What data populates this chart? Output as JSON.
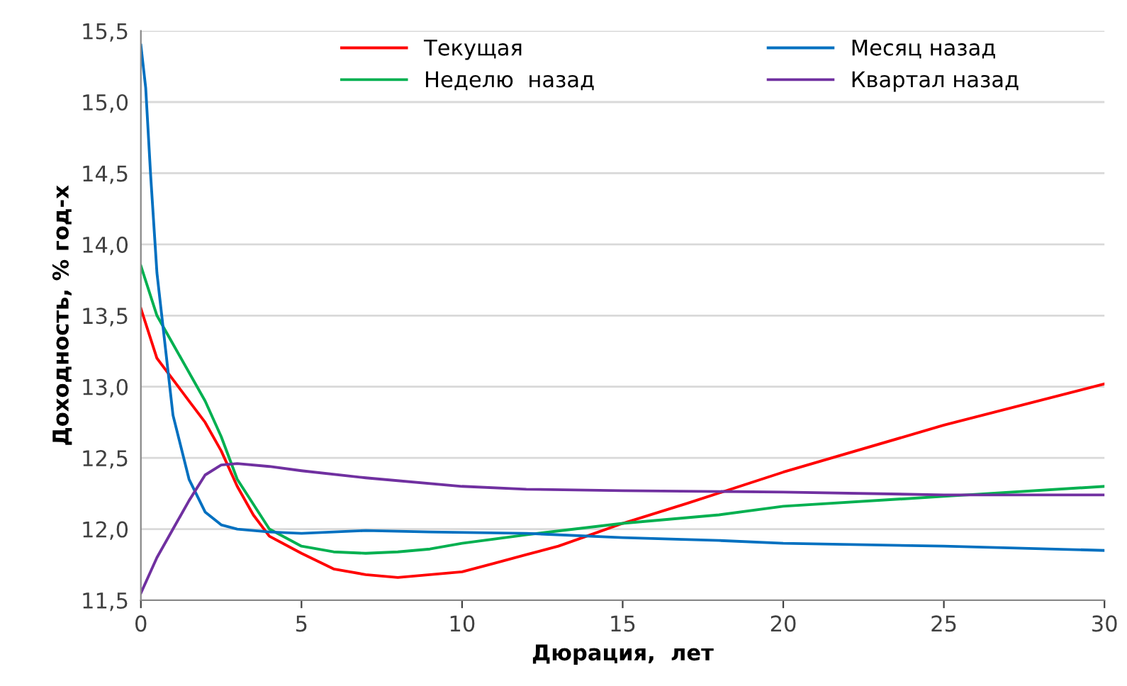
{
  "chart_data": {
    "type": "line",
    "xlabel": "Дюрация,  лет",
    "ylabel": "Доходность, % год-х",
    "xlim": [
      0,
      30
    ],
    "xticks": [
      0,
      5,
      10,
      15,
      20,
      25,
      30
    ],
    "ylim": [
      11.5,
      15.5
    ],
    "yticks": [
      {
        "value": 11.5,
        "label": "11,5"
      },
      {
        "value": 12.0,
        "label": "12,0"
      },
      {
        "value": 12.5,
        "label": "12,5"
      },
      {
        "value": 13.0,
        "label": "13,0"
      },
      {
        "value": 13.5,
        "label": "13,5"
      },
      {
        "value": 14.0,
        "label": "14,0"
      },
      {
        "value": 14.5,
        "label": "14,5"
      },
      {
        "value": 15.0,
        "label": "15,0"
      },
      {
        "value": 15.5,
        "label": "15,5"
      }
    ],
    "grid": "y",
    "legend": "top",
    "marker": "none",
    "line_style": "solid",
    "series": [
      {
        "name": "Текущая",
        "color": "#ff0000",
        "x": [
          0,
          0.5,
          1,
          1.5,
          2,
          2.5,
          3,
          3.5,
          4,
          5,
          6,
          7,
          8,
          9,
          10,
          11,
          12,
          13,
          14,
          15,
          17,
          20,
          25,
          30
        ],
        "values": [
          13.55,
          13.2,
          13.05,
          12.9,
          12.75,
          12.55,
          12.3,
          12.1,
          11.95,
          11.83,
          11.72,
          11.68,
          11.66,
          11.68,
          11.7,
          11.76,
          11.82,
          11.88,
          11.96,
          12.04,
          12.18,
          12.4,
          12.73,
          13.02
        ]
      },
      {
        "name": "Неделю  назад",
        "color": "#00b050",
        "x": [
          0,
          0.5,
          1,
          2,
          2.5,
          3,
          4,
          5,
          6,
          7,
          8,
          9,
          10,
          12,
          15,
          18,
          20,
          25,
          30
        ],
        "values": [
          13.85,
          13.5,
          13.3,
          12.9,
          12.65,
          12.35,
          12.0,
          11.88,
          11.84,
          11.83,
          11.84,
          11.86,
          11.9,
          11.96,
          12.04,
          12.1,
          12.16,
          12.23,
          12.3
        ]
      },
      {
        "name": "Месяц назад",
        "color": "#0070c0",
        "x": [
          0,
          0.15,
          0.3,
          0.5,
          0.8,
          1,
          1.5,
          2,
          2.5,
          3,
          4,
          5,
          7,
          9,
          12,
          15,
          18,
          20,
          25,
          30
        ],
        "values": [
          15.4,
          15.1,
          14.5,
          13.8,
          13.2,
          12.8,
          12.35,
          12.12,
          12.03,
          12.0,
          11.98,
          11.97,
          11.99,
          11.98,
          11.97,
          11.94,
          11.92,
          11.9,
          11.88,
          11.85
        ]
      },
      {
        "name": "Квартал назад",
        "color": "#7030a0",
        "x": [
          0,
          0.5,
          1,
          1.5,
          2,
          2.5,
          3,
          4,
          5,
          7,
          10,
          12,
          15,
          20,
          25,
          30
        ],
        "values": [
          11.55,
          11.8,
          12.0,
          12.2,
          12.38,
          12.45,
          12.46,
          12.44,
          12.41,
          12.36,
          12.3,
          12.28,
          12.27,
          12.26,
          12.24,
          12.24
        ]
      }
    ]
  }
}
